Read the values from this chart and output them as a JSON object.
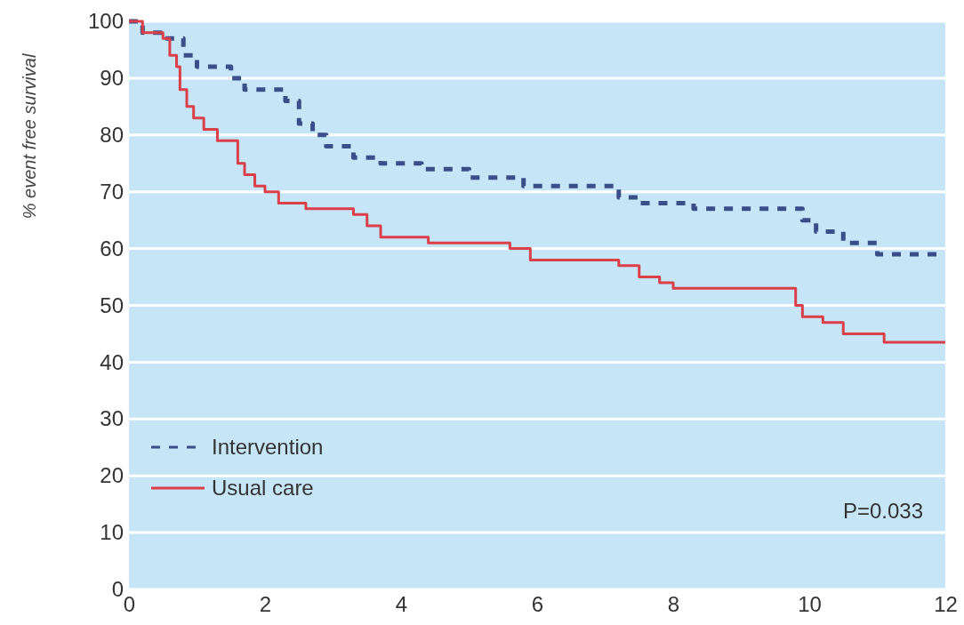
{
  "chart_data": {
    "type": "step",
    "ylabel": "% event free survival",
    "xlim": [
      0,
      12
    ],
    "ylim": [
      0,
      100
    ],
    "xticks": [
      0,
      2,
      4,
      6,
      8,
      10,
      12
    ],
    "yticks": [
      0,
      10,
      20,
      30,
      40,
      50,
      60,
      70,
      80,
      90,
      100
    ],
    "grid": "y",
    "legend": "bottom left",
    "annotations": [
      "P=0.033"
    ],
    "series": [
      {
        "name": "Intervention",
        "color": "#3a4f8a",
        "line_style": "dashed",
        "x": [
          0,
          0.2,
          0.5,
          0.8,
          1.0,
          1.5,
          1.7,
          2.3,
          2.5,
          2.7,
          2.9,
          3.3,
          3.7,
          4.3,
          5.0,
          5.8,
          7.2,
          7.5,
          8.3,
          9.9,
          10.1,
          10.5,
          11.0,
          12
        ],
        "values": [
          100,
          98,
          97,
          94,
          92,
          90,
          88,
          86,
          82,
          80,
          78,
          76,
          75,
          74,
          72.5,
          71,
          69,
          68,
          67,
          65,
          63,
          61,
          59,
          59
        ]
      },
      {
        "name": "Usual care",
        "color": "#d9404a",
        "line_style": "solid",
        "x": [
          0,
          0.2,
          0.5,
          0.6,
          0.7,
          0.75,
          0.85,
          0.95,
          1.1,
          1.3,
          1.6,
          1.7,
          1.85,
          2.0,
          2.2,
          2.6,
          3.3,
          3.5,
          3.7,
          4.4,
          5.6,
          5.9,
          7.2,
          7.5,
          7.8,
          8.0,
          9.8,
          9.9,
          10.2,
          10.5,
          11.1,
          12
        ],
        "values": [
          100,
          98,
          97,
          94,
          92,
          88,
          85,
          83,
          81,
          79,
          75,
          73,
          71,
          70,
          68,
          67,
          66,
          64,
          62,
          61,
          60,
          58,
          57,
          55,
          54,
          53,
          50,
          48,
          47,
          45,
          43.5,
          43.5
        ]
      }
    ]
  }
}
